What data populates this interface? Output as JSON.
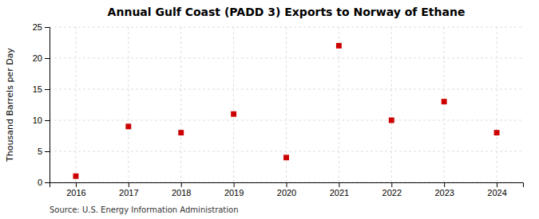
{
  "chart_data": {
    "type": "scatter",
    "title": "Annual Gulf Coast (PADD 3) Exports to Norway of Ethane",
    "ylabel": "Thousand Barrels per Day",
    "x": [
      2016,
      2017,
      2018,
      2019,
      2020,
      2021,
      2022,
      2023,
      2024
    ],
    "values": [
      1,
      9,
      8,
      11,
      4,
      22,
      10,
      13,
      8
    ],
    "color": "#cc0000",
    "marker": "square",
    "xlim": [
      2015.5,
      2024.5
    ],
    "ylim": [
      0,
      25
    ],
    "xticks": [
      2016,
      2017,
      2018,
      2019,
      2020,
      2021,
      2022,
      2023,
      2024
    ],
    "yticks": [
      0,
      5,
      10,
      15,
      20,
      25
    ],
    "grid": true,
    "annotations": [
      "Source: U.S. Energy Information Administration"
    ]
  }
}
